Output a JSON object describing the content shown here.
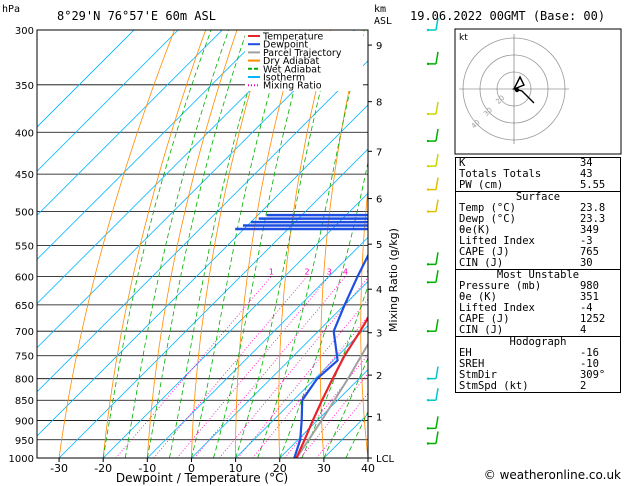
{
  "header": {
    "location": "8°29'N  76°57'E  60m  ASL",
    "datetime": "19.06.2022  00GMT  (Base: 00)",
    "hpa_label": "hPa",
    "km_label": "km",
    "asl_label": "ASL"
  },
  "chart_data": {
    "type": "skew-t",
    "xlabel": "Dewpoint / Temperature (°C)",
    "ylabel": "hPa",
    "ylabel_right": "Mixing Ratio (g/kg)",
    "temp_ticks": [
      -30,
      -20,
      -10,
      0,
      10,
      20,
      30,
      40
    ],
    "pressure_ticks": [
      300,
      350,
      400,
      450,
      500,
      550,
      600,
      650,
      700,
      750,
      800,
      850,
      900,
      950,
      1000
    ],
    "pressure_range": [
      300,
      1000
    ],
    "temp_range": [
      -35,
      40
    ],
    "km_ticks": [
      {
        "p": 313,
        "label": "9"
      },
      {
        "p": 367,
        "label": "8"
      },
      {
        "p": 422,
        "label": "7"
      },
      {
        "p": 482,
        "label": "6"
      },
      {
        "p": 548,
        "label": "5"
      },
      {
        "p": 622,
        "label": "4"
      },
      {
        "p": 703,
        "label": "3"
      },
      {
        "p": 792,
        "label": "2"
      },
      {
        "p": 890,
        "label": "1"
      },
      {
        "p": 1000,
        "label": "LCL"
      }
    ],
    "mixing_ratio_labels": [
      "1",
      "2",
      "3",
      "4",
      "6",
      "8",
      "10",
      "16",
      "20",
      "25"
    ],
    "mixing_ratio_values": [
      1,
      2,
      3,
      4,
      6,
      8,
      10,
      16,
      20,
      25
    ],
    "legend": [
      "Temperature",
      "Dewpoint",
      "Parcel Trajectory",
      "Dry Adiabat",
      "Wet Adiabat",
      "Isotherm",
      "Mixing Ratio"
    ],
    "colors": {
      "temperature": "#e8232a",
      "dewpoint": "#1f4fe0",
      "parcel": "#a0a0a0",
      "dry_adiabat": "#ff8c00",
      "wet_adiabat": "#00b000",
      "isotherm": "#00b4ff",
      "mixing_ratio": "#ff00c0"
    },
    "temperature": [
      {
        "p": 1000,
        "t": 23.8
      },
      {
        "p": 950,
        "t": 21.5
      },
      {
        "p": 900,
        "t": 19.0
      },
      {
        "p": 850,
        "t": 16.5
      },
      {
        "p": 800,
        "t": 14.0
      },
      {
        "p": 750,
        "t": 11.5
      },
      {
        "p": 700,
        "t": 9.5
      },
      {
        "p": 650,
        "t": 7.0
      },
      {
        "p": 600,
        "t": 3.0
      },
      {
        "p": 550,
        "t": -1.0
      },
      {
        "p": 500,
        "t": -5.5
      },
      {
        "p": 450,
        "t": -10.5
      },
      {
        "p": 440,
        "t": -9.0
      },
      {
        "p": 400,
        "t": -15.5
      },
      {
        "p": 350,
        "t": -24.0
      },
      {
        "p": 300,
        "t": -33.0
      }
    ],
    "dewpoint": [
      {
        "p": 1000,
        "t": 23.3
      },
      {
        "p": 950,
        "t": 20.5
      },
      {
        "p": 900,
        "t": 16.5
      },
      {
        "p": 850,
        "t": 12.0
      },
      {
        "p": 800,
        "t": 10.5
      },
      {
        "p": 760,
        "t": 11.0
      },
      {
        "p": 700,
        "t": 3.5
      },
      {
        "p": 650,
        "t": 0.0
      },
      {
        "p": 600,
        "t": -3.5
      },
      {
        "p": 550,
        "t": -7.0
      },
      {
        "p": 500,
        "t": -10.0
      },
      {
        "p": 450,
        "t": -11.5
      },
      {
        "p": 400,
        "t": -22.0
      },
      {
        "p": 350,
        "t": -40.0
      },
      {
        "p": 300,
        "t": -55.0
      }
    ],
    "parcel": [
      {
        "p": 1000,
        "t": 23.8
      },
      {
        "p": 900,
        "t": 21.0
      },
      {
        "p": 800,
        "t": 17.5
      },
      {
        "p": 700,
        "t": 13.0
      },
      {
        "p": 600,
        "t": 7.0
      },
      {
        "p": 500,
        "t": -1.0
      },
      {
        "p": 400,
        "t": -11.5
      },
      {
        "p": 300,
        "t": -27.0
      }
    ],
    "wind_barbs": [
      {
        "p": 300,
        "color": "#00c8c8"
      },
      {
        "p": 330,
        "color": "#00b000"
      },
      {
        "p": 380,
        "color": "#c8d800"
      },
      {
        "p": 410,
        "color": "#00b000"
      },
      {
        "p": 440,
        "color": "#c8d800"
      },
      {
        "p": 470,
        "color": "#e0c000"
      },
      {
        "p": 500,
        "color": "#e0c000"
      },
      {
        "p": 580,
        "color": "#00b000"
      },
      {
        "p": 610,
        "color": "#00b000"
      },
      {
        "p": 700,
        "color": "#00b000"
      },
      {
        "p": 800,
        "color": "#00c8c8"
      },
      {
        "p": 850,
        "color": "#00c8c8"
      },
      {
        "p": 920,
        "color": "#00b000"
      },
      {
        "p": 960,
        "color": "#00b000"
      }
    ]
  },
  "hodograph": {
    "label": "kt",
    "ring_labels": [
      "20",
      "30",
      "40"
    ]
  },
  "indices": {
    "basic": [
      {
        "label": "K",
        "value": "34"
      },
      {
        "label": "Totals Totals",
        "value": "43"
      },
      {
        "label": "PW (cm)",
        "value": "5.55"
      }
    ],
    "surface": {
      "title": "Surface",
      "rows": [
        {
          "label": "Temp (°C)",
          "value": "23.8"
        },
        {
          "label": "Dewp (°C)",
          "value": "23.3"
        },
        {
          "label": "θe(K)",
          "value": "349"
        },
        {
          "label": "Lifted Index",
          "value": "-3"
        },
        {
          "label": "CAPE (J)",
          "value": "765"
        },
        {
          "label": "CIN (J)",
          "value": "30"
        }
      ]
    },
    "unstable": {
      "title": "Most Unstable",
      "rows": [
        {
          "label": "Pressure (mb)",
          "value": "980"
        },
        {
          "label": "θe (K)",
          "value": "351"
        },
        {
          "label": "Lifted Index",
          "value": "-4"
        },
        {
          "label": "CAPE (J)",
          "value": "1252"
        },
        {
          "label": "CIN (J)",
          "value": "4"
        }
      ]
    },
    "hodo": {
      "title": "Hodograph",
      "rows": [
        {
          "label": "EH",
          "value": "-16"
        },
        {
          "label": "SREH",
          "value": "-10"
        },
        {
          "label": "StmDir",
          "value": "309°"
        },
        {
          "label": "StmSpd (kt)",
          "value": "2"
        }
      ]
    }
  },
  "footer": {
    "copyright": "© weatheronline.co.uk"
  }
}
